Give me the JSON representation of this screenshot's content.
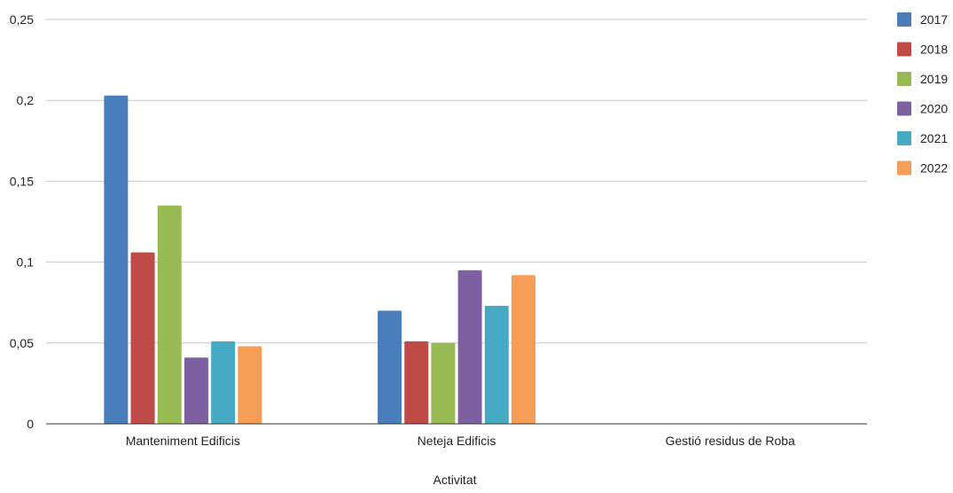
{
  "chart_data": {
    "type": "bar",
    "title": "",
    "xlabel": "Activitat",
    "ylabel": "",
    "categories": [
      "Manteniment Edificis",
      "Neteja Edificis",
      "Gestió residus de Roba"
    ],
    "series": [
      {
        "name": "2017",
        "color": "#4a7ebb",
        "values": [
          0.203,
          0.07,
          0
        ]
      },
      {
        "name": "2018",
        "color": "#be4b48",
        "values": [
          0.106,
          0.051,
          0
        ]
      },
      {
        "name": "2019",
        "color": "#98b954",
        "values": [
          0.135,
          0.05,
          0
        ]
      },
      {
        "name": "2020",
        "color": "#7d60a0",
        "values": [
          0.041,
          0.095,
          0
        ]
      },
      {
        "name": "2021",
        "color": "#46aac5",
        "values": [
          0.051,
          0.073,
          0
        ]
      },
      {
        "name": "2022",
        "color": "#f59d56",
        "values": [
          0.048,
          0.092,
          0
        ]
      }
    ],
    "ylim": [
      0,
      0.25
    ],
    "yticks": [
      "0",
      "0,05",
      "0,1",
      "0,15",
      "0,2",
      "0,25"
    ],
    "grid": true,
    "legend_position": "right"
  }
}
